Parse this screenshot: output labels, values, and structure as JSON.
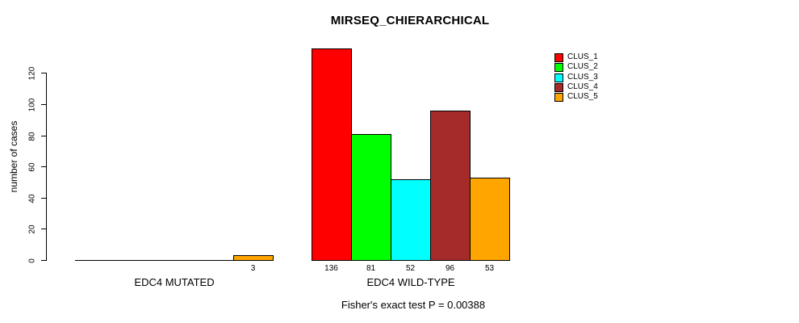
{
  "chart_data": {
    "type": "bar",
    "title": "MIRSEQ_CHIERARCHICAL",
    "ylabel": "number of cases",
    "xlabel": "",
    "categories": [
      "EDC4 MUTATED",
      "EDC4 WILD-TYPE"
    ],
    "series": [
      {
        "name": "CLUS_1",
        "color": "#FF0000",
        "values": [
          0,
          136
        ]
      },
      {
        "name": "CLUS_2",
        "color": "#00FF00",
        "values": [
          0,
          81
        ]
      },
      {
        "name": "CLUS_3",
        "color": "#00FFFF",
        "values": [
          0,
          52
        ]
      },
      {
        "name": "CLUS_4",
        "color": "#A52A2A",
        "values": [
          0,
          96
        ]
      },
      {
        "name": "CLUS_5",
        "color": "#FFA500",
        "values": [
          3,
          53
        ]
      }
    ],
    "bar_value_labels": {
      "EDC4 MUTATED": [
        null,
        null,
        null,
        null,
        3
      ],
      "EDC4 WILD-TYPE": [
        136,
        81,
        52,
        96,
        53
      ]
    },
    "yticks": [
      0,
      20,
      40,
      60,
      80,
      100,
      120
    ],
    "ylim": [
      0,
      136
    ],
    "grid": false,
    "legend": {
      "position": "top-right",
      "entries": [
        "CLUS_1",
        "CLUS_2",
        "CLUS_3",
        "CLUS_4",
        "CLUS_5"
      ]
    },
    "annotation": "Fisher's exact test P = 0.00388"
  }
}
